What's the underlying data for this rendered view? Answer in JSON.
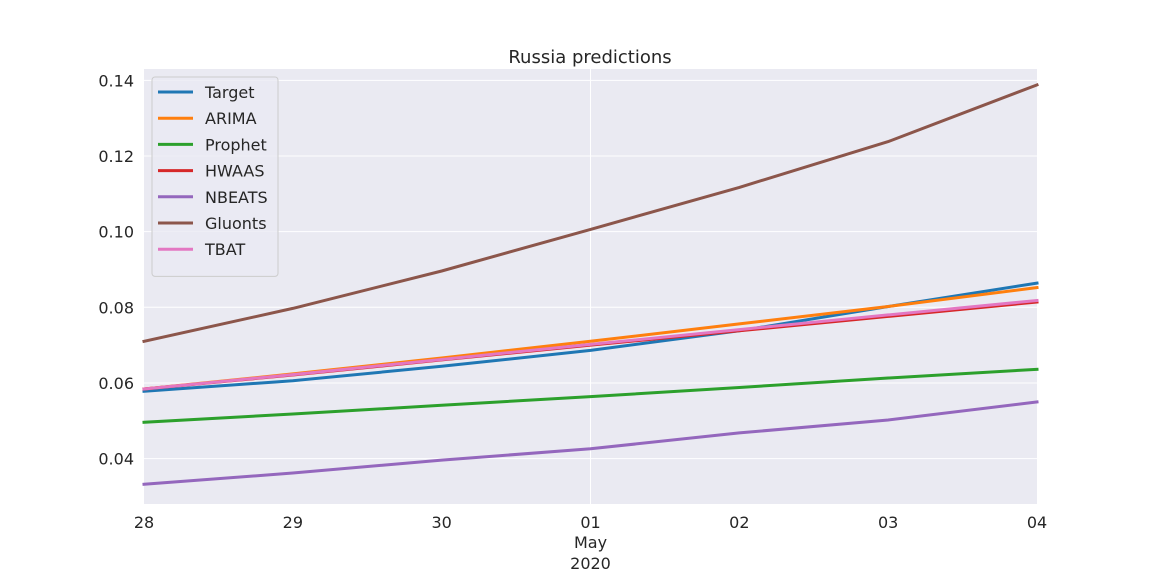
{
  "chart_data": {
    "type": "line",
    "title": "Russia predictions",
    "x": [
      "28",
      "29",
      "30",
      "01",
      "02",
      "03",
      "04"
    ],
    "x_secondary_labels": [
      "May",
      "2020"
    ],
    "ylim": [
      0.028,
      0.143
    ],
    "yticks": [
      "0.04",
      "0.06",
      "0.08",
      "0.10",
      "0.12",
      "0.14"
    ],
    "grid": true,
    "legend_position": "top-left",
    "series": [
      {
        "name": "Target",
        "color": "#1f77b4",
        "values": [
          0.0578,
          0.0606,
          0.0644,
          0.0686,
          0.0738,
          0.0802,
          0.0864
        ]
      },
      {
        "name": "ARIMA",
        "color": "#ff7f0e",
        "values": [
          0.0584,
          0.0624,
          0.0666,
          0.071,
          0.0756,
          0.0802,
          0.0852
        ]
      },
      {
        "name": "Prophet",
        "color": "#2ca02c",
        "values": [
          0.0496,
          0.0518,
          0.0541,
          0.0564,
          0.0588,
          0.0613,
          0.0636
        ]
      },
      {
        "name": "HWAAS",
        "color": "#d62728",
        "values": [
          0.0584,
          0.0621,
          0.0661,
          0.07,
          0.0738,
          0.0776,
          0.0814
        ]
      },
      {
        "name": "NBEATS",
        "color": "#9467bd",
        "values": [
          0.0332,
          0.0362,
          0.0396,
          0.0426,
          0.0468,
          0.0502,
          0.055
        ]
      },
      {
        "name": "Gluonts",
        "color": "#8c564b",
        "values": [
          0.071,
          0.0797,
          0.0896,
          0.1006,
          0.1117,
          0.1238,
          0.1388
        ]
      },
      {
        "name": "TBAT",
        "color": "#e377c2",
        "values": [
          0.0584,
          0.0622,
          0.0662,
          0.0702,
          0.0741,
          0.078,
          0.0818
        ]
      }
    ]
  }
}
